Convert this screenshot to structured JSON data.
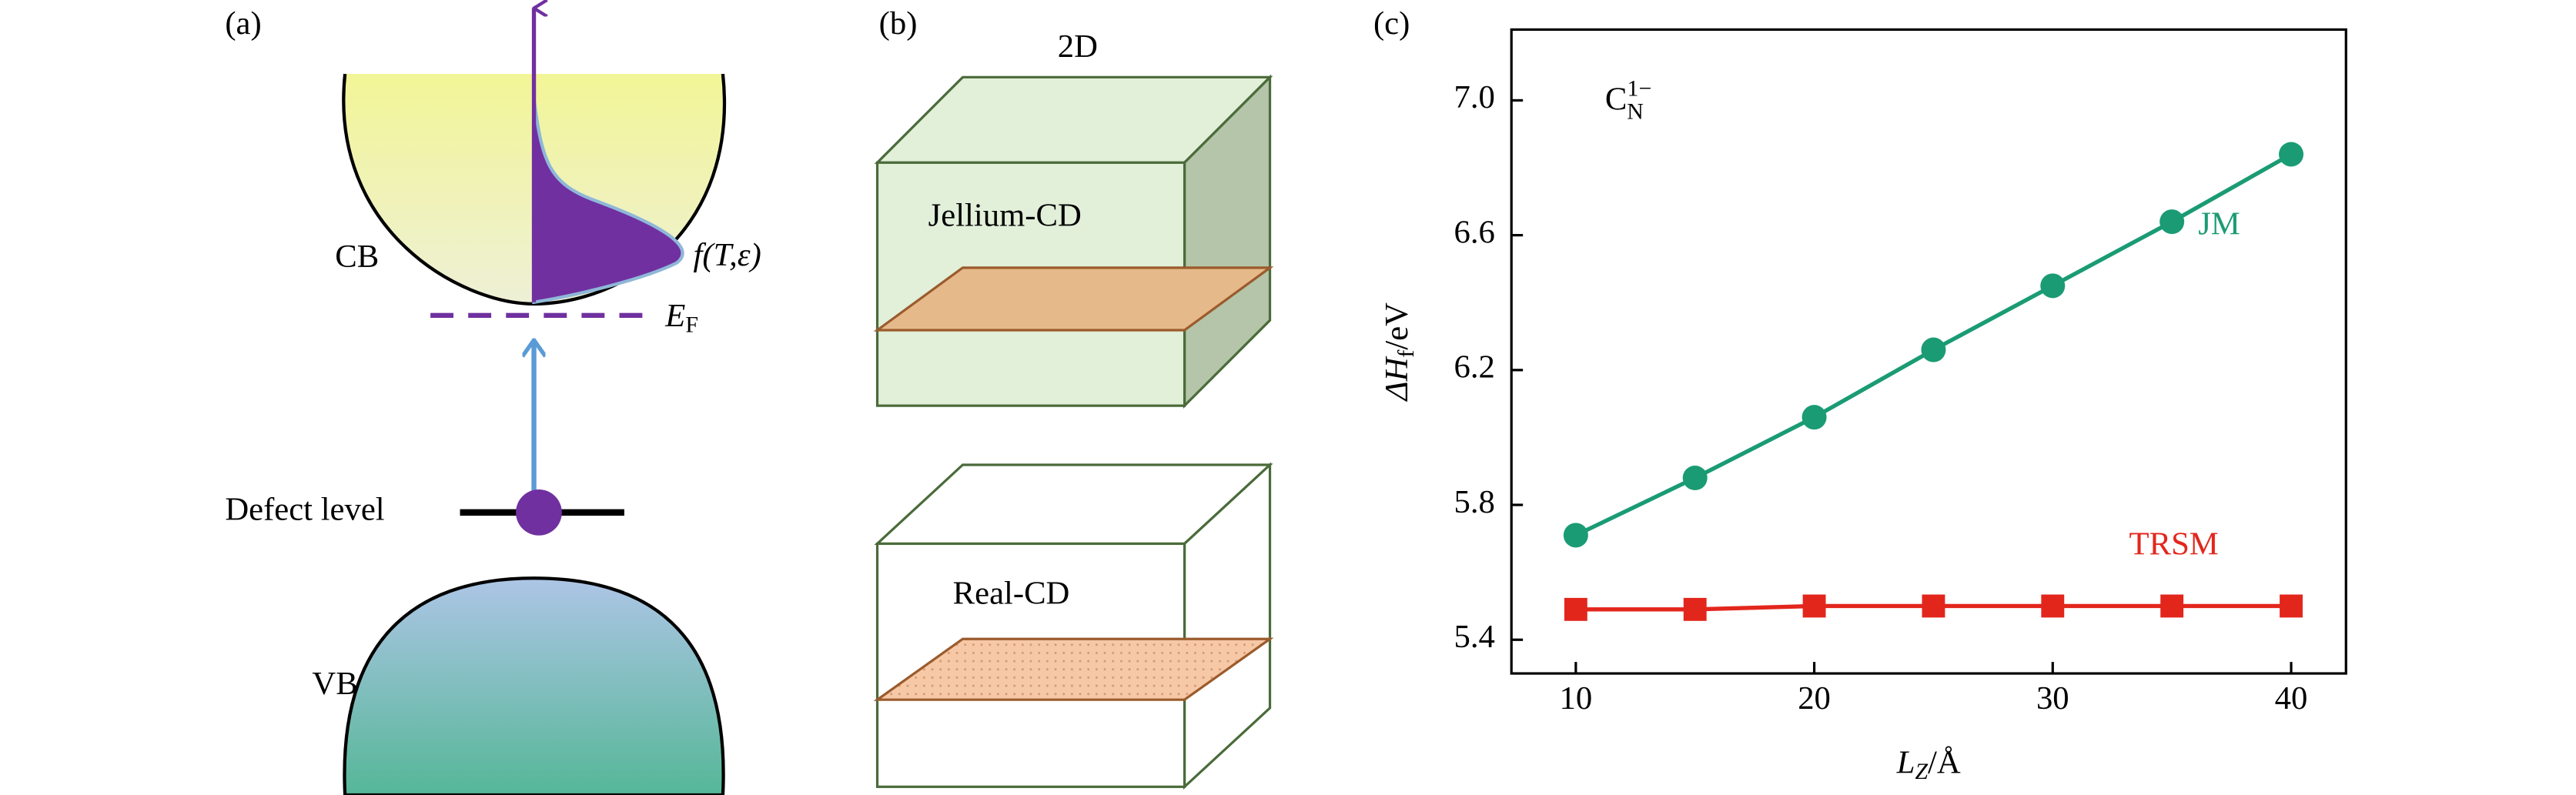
{
  "panel_a": {
    "label": "(a)",
    "cb": "CB",
    "vb": "VB",
    "fermi_fn": "f(T,ε)",
    "fermi_level": [
      "E",
      "F"
    ],
    "defect": "Defect level"
  },
  "panel_b": {
    "label": "(b)",
    "title": "2D",
    "top_box": "Jellium-CD",
    "bottom_box": "Real-CD"
  },
  "panel_c": {
    "label": "(c)"
  },
  "chart_data": {
    "type": "line",
    "annotation": [
      "C",
      "N",
      "1−"
    ],
    "x_label": [
      "L",
      "Z",
      "/Å"
    ],
    "y_label": [
      "ΔH",
      "f",
      "/eV"
    ],
    "x": [
      10,
      15,
      20,
      25,
      30,
      35,
      40
    ],
    "series": [
      {
        "name": "JM",
        "color": "#1a9b74",
        "marker": "circle",
        "values": [
          5.71,
          5.88,
          6.06,
          6.26,
          6.45,
          6.64,
          6.84
        ]
      },
      {
        "name": "TRSM",
        "color": "#e3261c",
        "marker": "square",
        "values": [
          5.49,
          5.49,
          5.5,
          5.5,
          5.5,
          5.5,
          5.5
        ]
      }
    ],
    "xlim": [
      7.3,
      42.3
    ],
    "ylim": [
      5.3,
      7.21
    ],
    "xticks": [
      10,
      20,
      30,
      40
    ],
    "yticks": [
      5.4,
      5.8,
      6.2,
      6.6,
      {
        "value": 7,
        "label": "7.0"
      }
    ]
  }
}
